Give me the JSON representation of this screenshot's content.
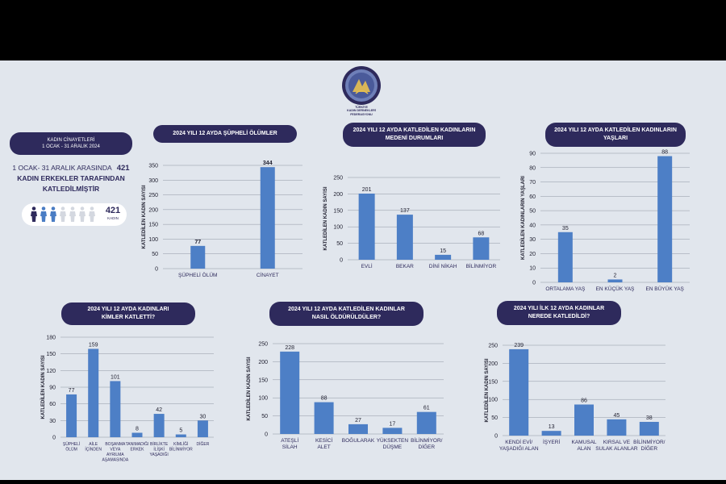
{
  "logo": {
    "text_lines": [
      "TÜRKİYE",
      "KADIN DERNEKLERİ",
      "FEDERASYONU"
    ]
  },
  "summary": {
    "pill_line1": "KADIN CİNAYETLERİ",
    "pill_line2": "1 OCAK - 31 ARALIK 2024",
    "line1": "1 OCAK- 31 ARALIK ARASINDA",
    "line1_count": "421",
    "line2": "KADIN ERKEKLER TARAFINDAN",
    "line3": "KATLEDİLMİŞTİR",
    "count": "421",
    "count_unit": "KADIN",
    "figures_total": 7,
    "figures_filled": 3,
    "filled_color": "#2e2a5c",
    "empty_color": "#d4d8e0",
    "accent_color": "#4a7dc4"
  },
  "colors": {
    "bar": "#4d7fc6",
    "pill": "#2e2a5c",
    "background": "#e1e6ed"
  },
  "chart_data": [
    {
      "id": "suspicious",
      "type": "bar",
      "title_lines": [
        "2024 YILI 12 AYDA ŞÜPHELİ ÖLÜMLER"
      ],
      "ylabel": "KATLEDİLEN KADIN SAYISI",
      "categories": [
        [
          "ŞÜPHELİ ÖLÜM"
        ],
        [
          "CİNAYET"
        ]
      ],
      "values": [
        77,
        344
      ],
      "ylim": [
        0,
        350
      ],
      "ticks": [
        0,
        50,
        100,
        150,
        200,
        250,
        300,
        350
      ],
      "grid": true
    },
    {
      "id": "marital",
      "type": "bar",
      "title_lines": [
        "2024 YILI 12 AYDA KATLEDİLEN KADINLARIN",
        "MEDENİ DURUMLARI"
      ],
      "ylabel": "KATLEDİLEN KADIN SAYISI",
      "categories": [
        [
          "EVLİ"
        ],
        [
          "BEKAR"
        ],
        [
          "DİNİ NİKAH"
        ],
        [
          "BİLİNMİYOR"
        ]
      ],
      "values": [
        201,
        137,
        15,
        68
      ],
      "ylim": [
        0,
        250
      ],
      "ticks": [
        0,
        50,
        100,
        150,
        200,
        250
      ],
      "grid": true
    },
    {
      "id": "ages",
      "type": "bar",
      "title_lines": [
        "2024 YILI 12 AYDA KATLEDİLEN KADINLARIN",
        "YAŞLARI"
      ],
      "ylabel": "KATLEDİLEN KADINLARIN YAŞLARI",
      "categories": [
        [
          "ORTALAMA YAŞ"
        ],
        [
          "EN KÜÇÜK YAŞ"
        ],
        [
          "EN BÜYÜK YAŞ"
        ]
      ],
      "values": [
        35,
        2,
        88
      ],
      "ylim": [
        0,
        90
      ],
      "ticks": [
        0,
        10,
        20,
        30,
        40,
        50,
        60,
        70,
        80,
        90
      ],
      "grid": true
    },
    {
      "id": "perpetrators",
      "type": "bar",
      "title_lines": [
        "2024 YILI 12 AYDA KADINLARI",
        "KİMLER KATLETTİ?"
      ],
      "ylabel": "KATLEDİLEN KADIN SAYISI",
      "categories": [
        [
          "ŞÜPHELİ",
          "ÖLÜM"
        ],
        [
          "AİLE",
          "İÇİNDEN"
        ],
        [
          "BOŞANMA",
          "VEYA",
          "AYRILMA",
          "AŞAMASINDA"
        ],
        [
          "TANIMADIĞI",
          "ERKEK"
        ],
        [
          "BİRLİKTE",
          "İLİŞKİ",
          "YAŞADIĞI"
        ],
        [
          "KİMLİĞİ",
          "BİLİNMİYOR"
        ],
        [
          "DİĞER"
        ]
      ],
      "values": [
        77,
        159,
        101,
        8,
        42,
        5,
        30
      ],
      "ylim": [
        0,
        180
      ],
      "ticks": [
        0,
        30,
        60,
        90,
        120,
        150,
        180
      ],
      "grid": true
    },
    {
      "id": "methods",
      "type": "bar",
      "title_lines": [
        "2024 YILI 12 AYDA KATLEDİLEN KADINLAR",
        "NASIL ÖLDÜRÜLDÜLER?"
      ],
      "ylabel": "KATLEDİLEN KADIN SAYISI",
      "categories": [
        [
          "ATEŞLİ",
          "SİLAH"
        ],
        [
          "KESİCİ",
          "ALET"
        ],
        [
          "BOĞULARAK"
        ],
        [
          "YÜKSEKTEN",
          "DÜŞME"
        ],
        [
          "BİLİNMİYOR/",
          "DİĞER"
        ]
      ],
      "values": [
        228,
        88,
        27,
        17,
        61
      ],
      "ylim": [
        0,
        250
      ],
      "ticks": [
        0,
        50,
        100,
        150,
        200,
        250
      ],
      "grid": true
    },
    {
      "id": "locations",
      "type": "bar",
      "title_lines": [
        "2024 YILI İLK 12 AYDA KADINLAR",
        "NEREDE KATLEDİLDİ?"
      ],
      "ylabel": "KATLEDİLEN KADIN SAYISI",
      "categories": [
        [
          "KENDİ EVİ/",
          "YAŞADIĞI ALAN"
        ],
        [
          "İŞYERİ"
        ],
        [
          "KAMUSAL",
          "ALAN"
        ],
        [
          "KIRSAL VE",
          "SULAK ALANLAR"
        ],
        [
          "BİLİNMİYOR/",
          "DİĞER"
        ]
      ],
      "values": [
        239,
        13,
        86,
        45,
        38
      ],
      "ylim": [
        0,
        250
      ],
      "ticks": [
        0,
        50,
        100,
        150,
        200,
        250
      ],
      "grid": true
    }
  ]
}
